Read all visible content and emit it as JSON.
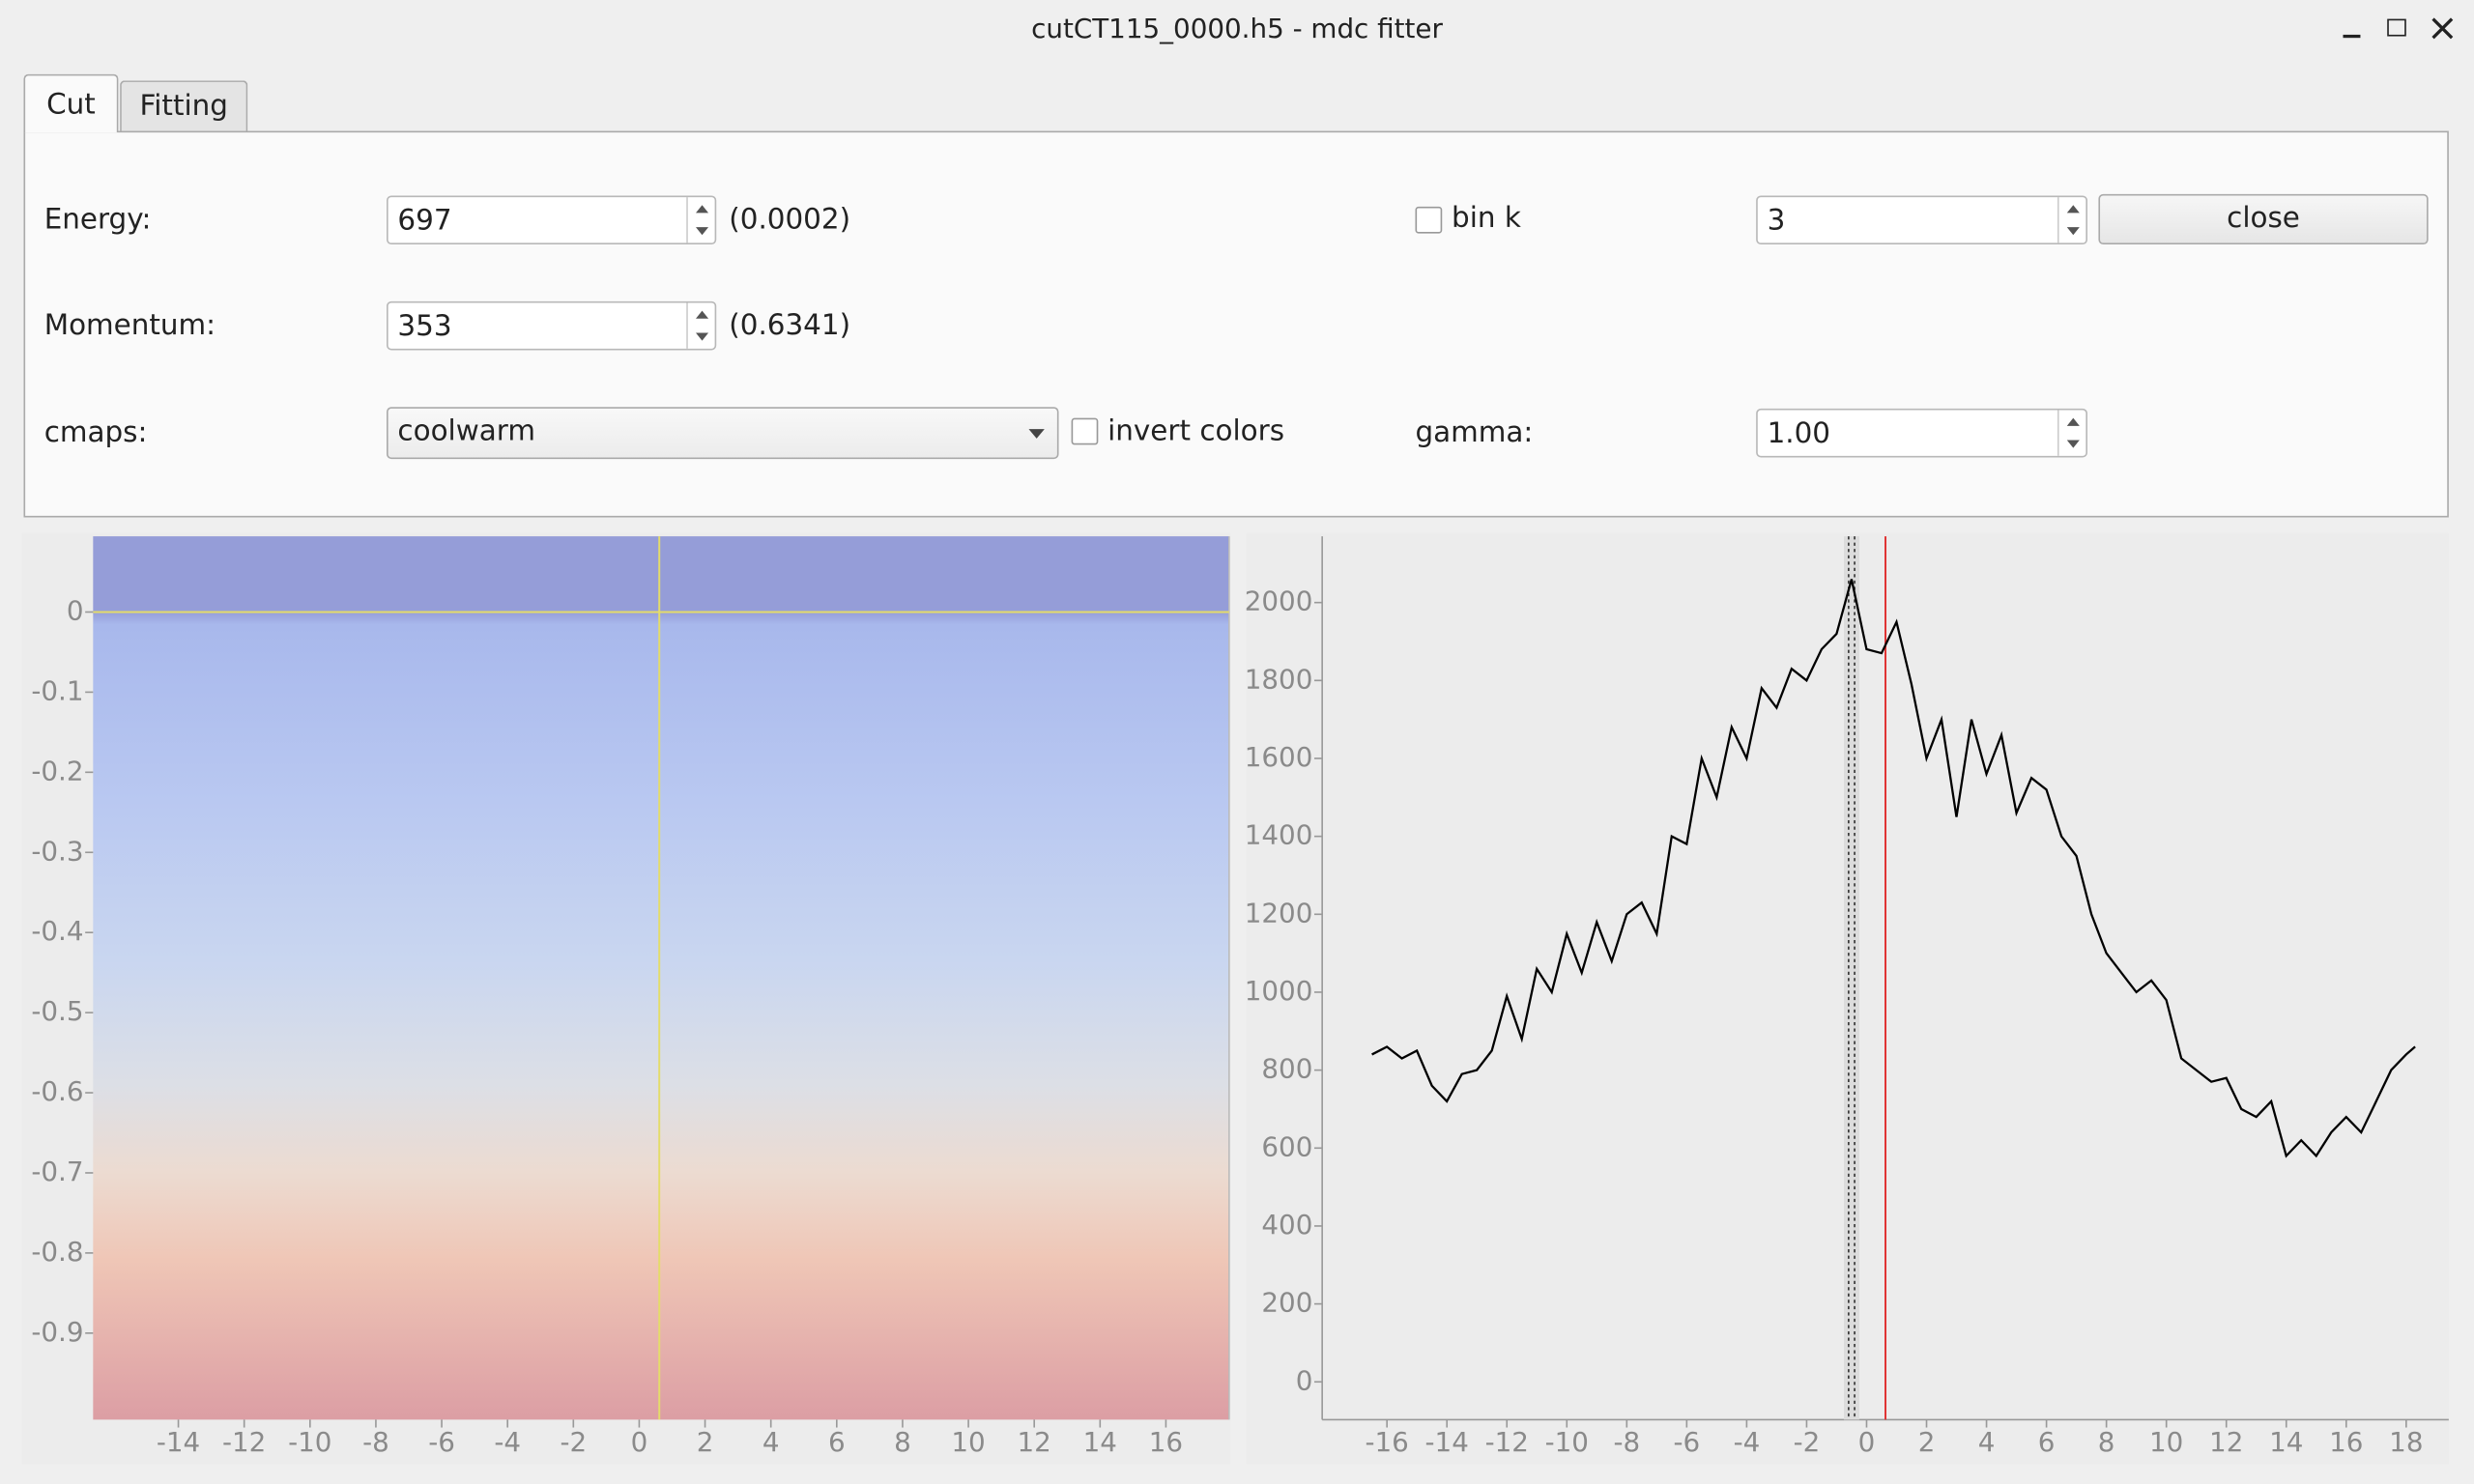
{
  "window": {
    "title": "cutCT115_0000.h5 - mdc fitter"
  },
  "tabs": [
    "Cut",
    "Fitting"
  ],
  "form": {
    "energy_label": "Energy:",
    "energy_value": "697",
    "energy_readout": "(0.0002)",
    "momentum_label": "Momentum:",
    "momentum_value": "353",
    "momentum_readout": "(0.6341)",
    "cmaps_label": "cmaps:",
    "cmap_value": "coolwarm",
    "invert_label": "invert colors",
    "bin_k_label": "bin k",
    "bin_k_value": "3",
    "close_button": "close",
    "gamma_label": "gamma:",
    "gamma_value": "1.00"
  },
  "chart_data": [
    {
      "type": "heatmap",
      "xlim": [
        -16.59,
        17.92
      ],
      "ylim": [
        -1.008,
        0.0945
      ],
      "xticks": [
        -14,
        -12,
        -10,
        -8,
        -6,
        -4,
        -2,
        0,
        2,
        4,
        6,
        8,
        10,
        12,
        14,
        16
      ],
      "yticks": [
        0,
        -0.1,
        -0.2,
        -0.3,
        -0.4,
        -0.5,
        -0.6,
        -0.7,
        -0.8,
        -0.9
      ],
      "cursor": {
        "x": 0.61,
        "y": 0
      },
      "cursor_color": "#e4dc6a"
    },
    {
      "type": "line",
      "xlim": [
        -18.16,
        19.42
      ],
      "ylim": [
        -97,
        2170
      ],
      "xticks": [
        -16,
        -14,
        -12,
        -10,
        -8,
        -6,
        -4,
        -2,
        0,
        2,
        4,
        6,
        8,
        10,
        12,
        14,
        16,
        18
      ],
      "yticks": [
        0,
        200,
        400,
        600,
        800,
        1000,
        1200,
        1400,
        1600,
        1800,
        2000
      ],
      "color": "#000000",
      "x": [
        -16.5,
        -16,
        -15.5,
        -15,
        -14.5,
        -14,
        -13.5,
        -13,
        -12.5,
        -12,
        -11.5,
        -11,
        -10.5,
        -10,
        -9.5,
        -9,
        -8.5,
        -8,
        -7.5,
        -7,
        -6.5,
        -6,
        -5.5,
        -5,
        -4.5,
        -4,
        -3.5,
        -3,
        -2.5,
        -2,
        -1.5,
        -1,
        -0.5,
        0,
        0.5,
        1,
        1.5,
        2,
        2.5,
        3,
        3.5,
        4,
        4.5,
        5,
        5.5,
        6,
        6.5,
        7,
        7.5,
        8,
        8.5,
        9,
        9.5,
        10,
        10.5,
        11,
        11.5,
        12,
        12.5,
        13,
        13.5,
        14,
        14.5,
        15,
        15.5,
        16,
        16.5,
        17,
        17.5,
        18,
        18.3
      ],
      "values": [
        840,
        860,
        830,
        850,
        760,
        720,
        790,
        800,
        850,
        990,
        880,
        1060,
        1000,
        1150,
        1050,
        1180,
        1080,
        1200,
        1230,
        1150,
        1400,
        1380,
        1600,
        1500,
        1680,
        1600,
        1780,
        1730,
        1830,
        1800,
        1880,
        1920,
        2060,
        1880,
        1870,
        1950,
        1790,
        1600,
        1700,
        1450,
        1700,
        1560,
        1660,
        1460,
        1550,
        1520,
        1400,
        1350,
        1200,
        1100,
        1050,
        1000,
        1030,
        980,
        830,
        800,
        770,
        780,
        700,
        680,
        720,
        580,
        620,
        580,
        640,
        680,
        640,
        720,
        800,
        840,
        860
      ],
      "marker_line": {
        "x": 0.63,
        "color": "#e03030"
      },
      "dotted_lines": [
        -0.6,
        -0.4
      ]
    }
  ]
}
